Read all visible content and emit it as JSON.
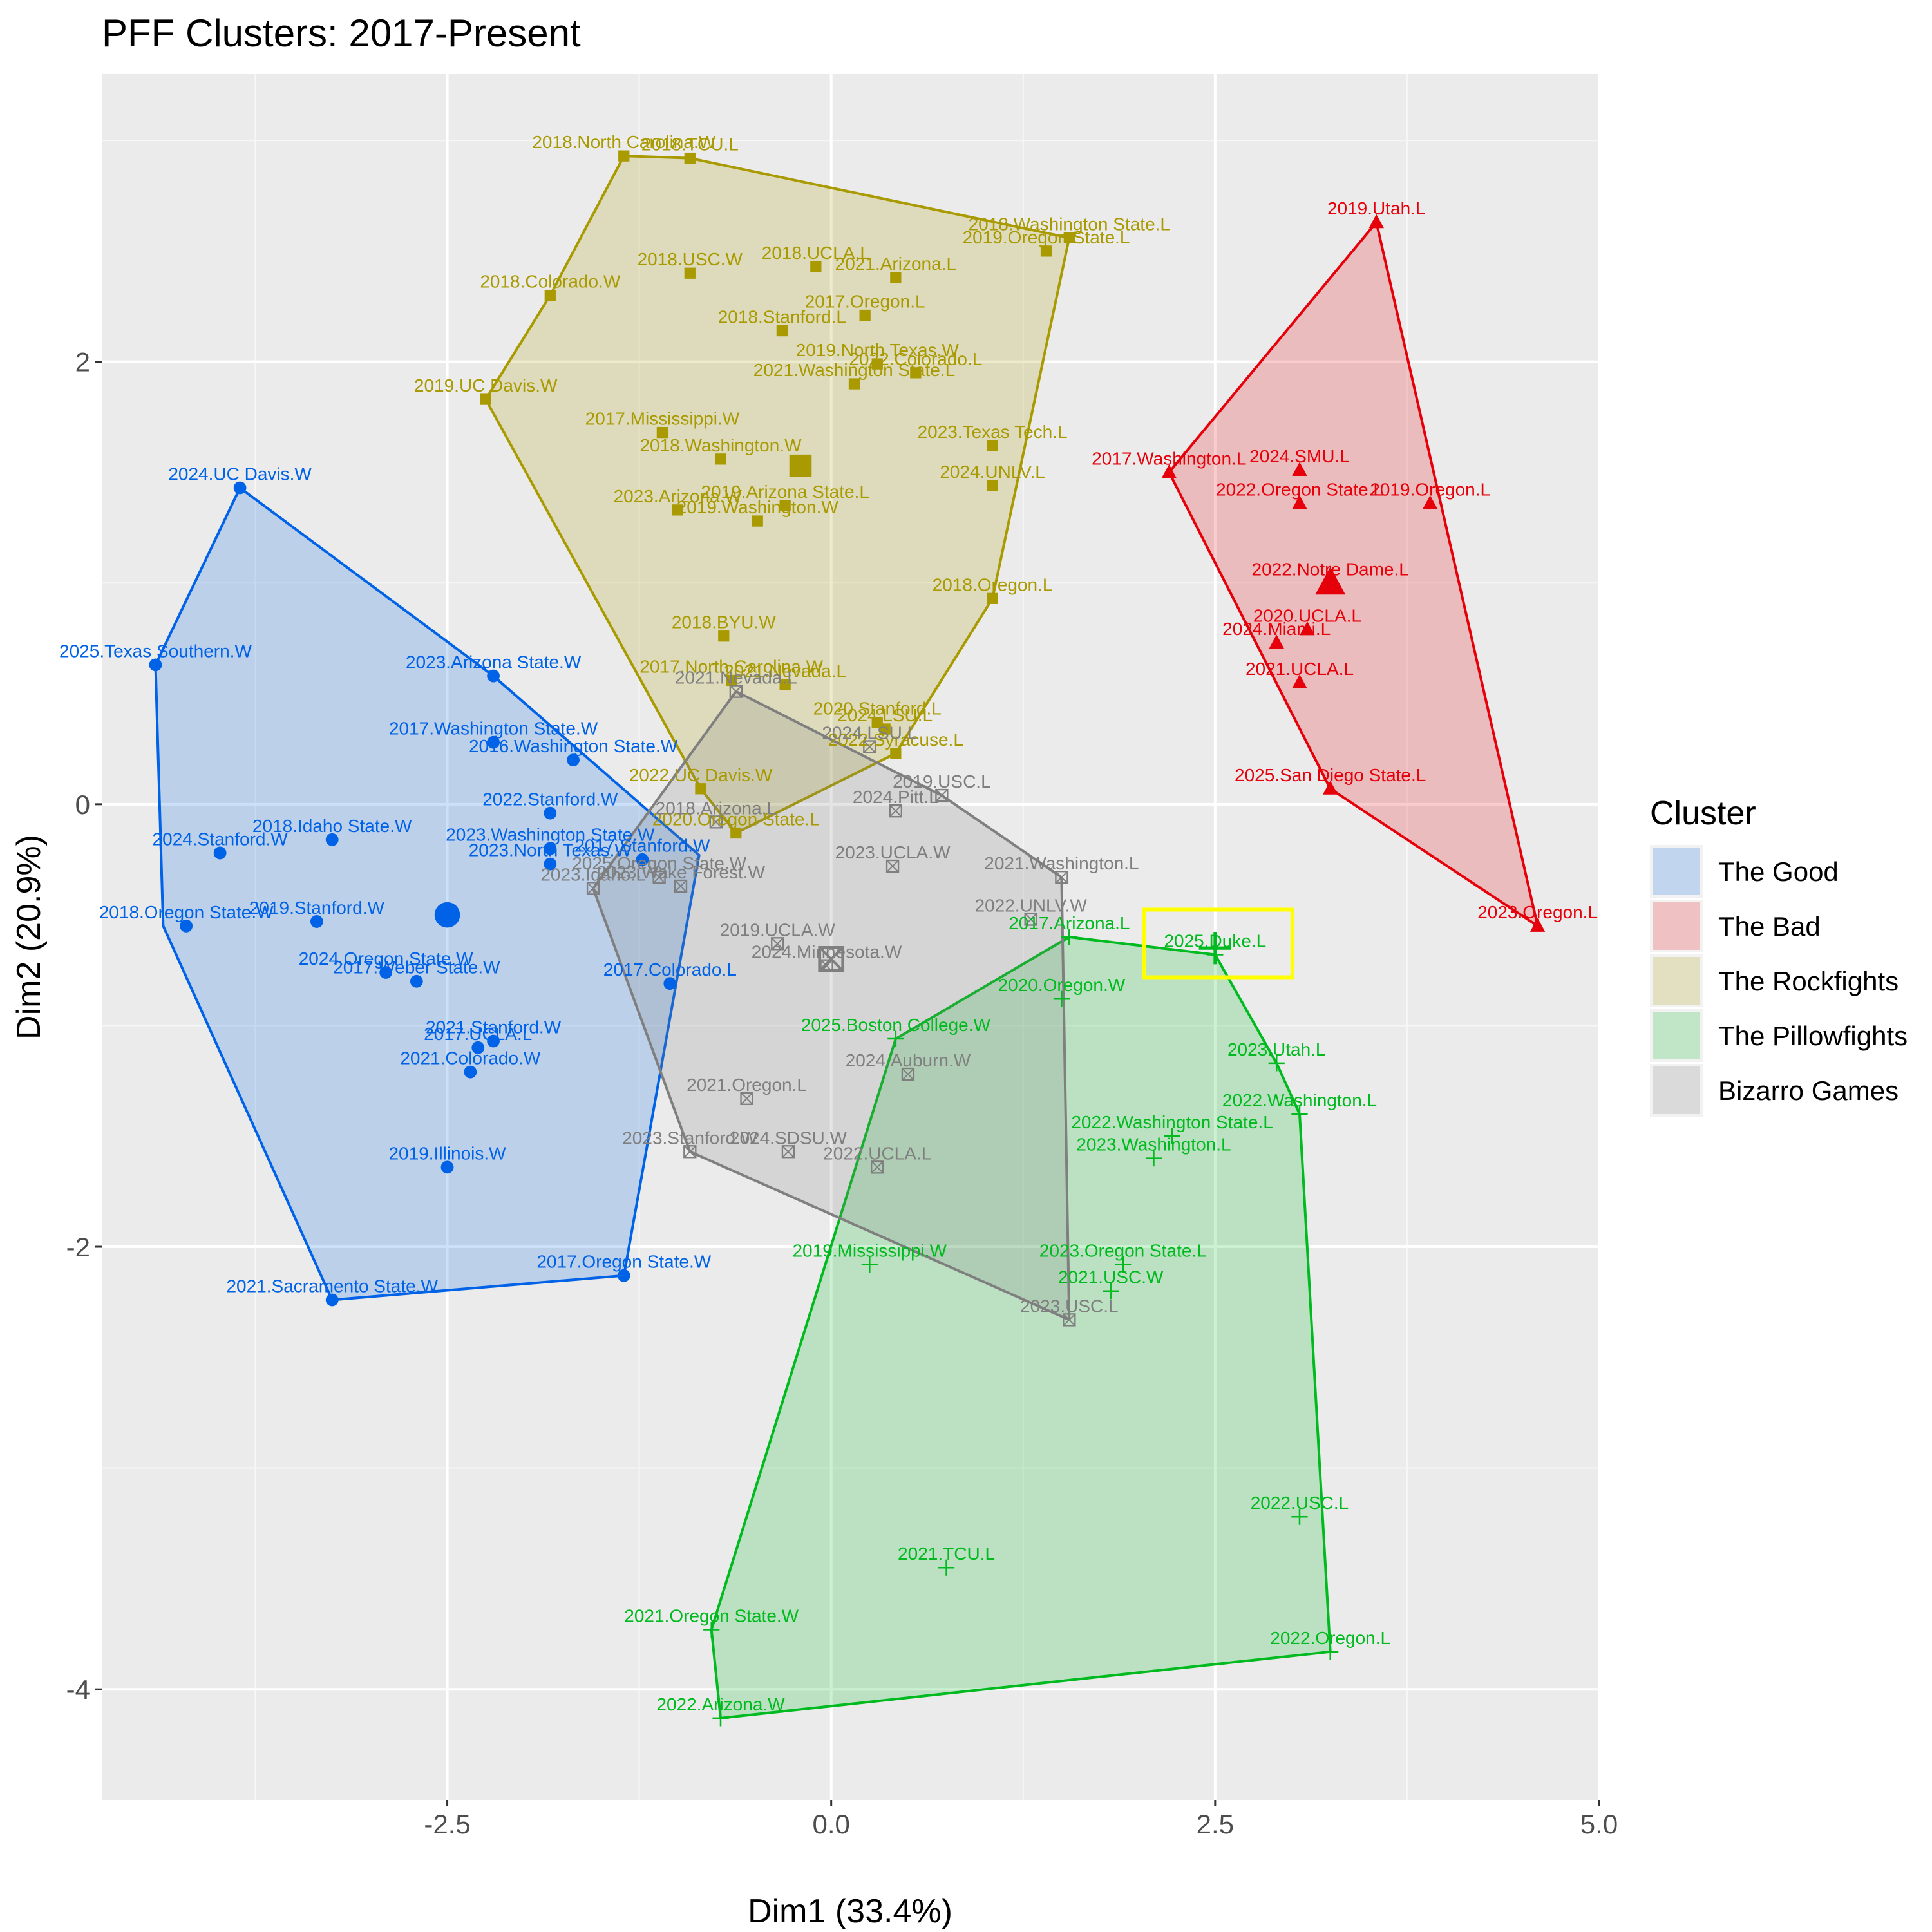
{
  "chart_data": {
    "type": "scatter",
    "title": "PFF Clusters: 2017-Present",
    "xlabel": "Dim1 (33.4%)",
    "ylabel": "Dim2 (20.9%)",
    "xlim": [
      -4.75,
      5.0
    ],
    "ylim": [
      -4.5,
      3.3
    ],
    "x_ticks": [
      -2.5,
      0.0,
      2.5,
      5.0
    ],
    "x_tick_labels": [
      "-2.5",
      "0.0",
      "2.5",
      "5.0"
    ],
    "y_ticks": [
      -4,
      -2,
      0,
      2
    ],
    "y_tick_labels": [
      "-4",
      "-2",
      "0",
      "2"
    ],
    "grid": true,
    "legend_title": "Cluster",
    "legend_position": "right",
    "highlight": {
      "label": "2025.Duke.L",
      "color": "#FFFF00"
    },
    "series": [
      {
        "name": "The Good",
        "color": "#0062E6",
        "shape": "circle",
        "centroid": [
          -2.5,
          -0.5
        ],
        "hull": [
          [
            -3.85,
            1.43
          ],
          [
            -2.2,
            0.58
          ],
          [
            -0.86,
            -0.23
          ],
          [
            -1.35,
            -2.13
          ],
          [
            -3.25,
            -2.24
          ],
          [
            -4.35,
            -0.55
          ],
          [
            -4.4,
            0.63
          ]
        ],
        "points": [
          {
            "label": "2024.UC Davis.W",
            "x": -3.85,
            "y": 1.43
          },
          {
            "label": "2025.Texas Southern.W",
            "x": -4.4,
            "y": 0.63
          },
          {
            "label": "2023.Arizona State.W",
            "x": -2.2,
            "y": 0.58
          },
          {
            "label": "2017.Washington State.W",
            "x": -2.2,
            "y": 0.28
          },
          {
            "label": "2016.Washington State.W",
            "x": -1.68,
            "y": 0.2
          },
          {
            "label": "2022.Stanford.W",
            "x": -1.83,
            "y": -0.04
          },
          {
            "label": "2018.Idaho State.W",
            "x": -3.25,
            "y": -0.16
          },
          {
            "label": "2024.Stanford.W",
            "x": -3.98,
            "y": -0.22
          },
          {
            "label": "2023.Washington State.W",
            "x": -1.83,
            "y": -0.2
          },
          {
            "label": "2017.Stanford.W",
            "x": -1.23,
            "y": -0.25
          },
          {
            "label": "2023.North Texas.W",
            "x": -1.83,
            "y": -0.27
          },
          {
            "label": "2018.Oregon State.W",
            "x": -4.2,
            "y": -0.55
          },
          {
            "label": "2019.Stanford.W",
            "x": -3.35,
            "y": -0.53
          },
          {
            "label": "2024.Oregon State.W",
            "x": -2.9,
            "y": -0.76
          },
          {
            "label": "2017.Weber State.W",
            "x": -2.7,
            "y": -0.8
          },
          {
            "label": "2017.Colorado.L",
            "x": -1.05,
            "y": -0.81
          },
          {
            "label": "2021.Stanford.W",
            "x": -2.2,
            "y": -1.07
          },
          {
            "label": "2017.UCLA.L",
            "x": -2.3,
            "y": -1.1
          },
          {
            "label": "2021.Colorado.W",
            "x": -2.35,
            "y": -1.21
          },
          {
            "label": "2019.Illinois.W",
            "x": -2.5,
            "y": -1.64
          },
          {
            "label": "2017.Oregon State.W",
            "x": -1.35,
            "y": -2.13
          },
          {
            "label": "2021.Sacramento State.W",
            "x": -3.25,
            "y": -2.24
          }
        ]
      },
      {
        "name": "The Bad",
        "color": "#E6000A",
        "shape": "triangle",
        "centroid": [
          3.25,
          1.0
        ],
        "hull": [
          [
            3.55,
            2.63
          ],
          [
            4.6,
            -0.55
          ],
          [
            3.25,
            0.07
          ],
          [
            2.2,
            1.5
          ]
        ],
        "points": [
          {
            "label": "2019.Utah.L",
            "x": 3.55,
            "y": 2.63
          },
          {
            "label": "2017.Washington.L",
            "x": 2.2,
            "y": 1.5
          },
          {
            "label": "2024.SMU.L",
            "x": 3.05,
            "y": 1.51
          },
          {
            "label": "2022.Oregon State.L",
            "x": 3.05,
            "y": 1.36
          },
          {
            "label": "2019.Oregon.L",
            "x": 3.9,
            "y": 1.36
          },
          {
            "label": "2022.Notre Dame.L",
            "x": 3.25,
            "y": 1.0
          },
          {
            "label": "2020.UCLA.L",
            "x": 3.1,
            "y": 0.79
          },
          {
            "label": "2024.Miami.L",
            "x": 2.9,
            "y": 0.73
          },
          {
            "label": "2021.UCLA.L",
            "x": 3.05,
            "y": 0.55
          },
          {
            "label": "2025.San Diego State.L",
            "x": 3.25,
            "y": 0.07
          },
          {
            "label": "2023.Oregon.L",
            "x": 4.6,
            "y": -0.55
          }
        ]
      },
      {
        "name": "The Rockfights",
        "color": "#A89A00",
        "shape": "square",
        "centroid": [
          -0.2,
          1.53
        ],
        "hull": [
          [
            -1.35,
            2.93
          ],
          [
            -0.92,
            2.92
          ],
          [
            1.55,
            2.56
          ],
          [
            1.05,
            0.93
          ],
          [
            0.42,
            0.23
          ],
          [
            -0.62,
            -0.13
          ],
          [
            -0.85,
            0.07
          ],
          [
            -2.25,
            1.83
          ],
          [
            -1.83,
            2.3
          ]
        ],
        "points": [
          {
            "label": "2018.North Carolina.W",
            "x": -1.35,
            "y": 2.93
          },
          {
            "label": "2018.TCU.L",
            "x": -0.92,
            "y": 2.92
          },
          {
            "label": "2019.Oregon State.L",
            "x": 1.4,
            "y": 2.5
          },
          {
            "label": "2018.Washington State.L",
            "x": 1.55,
            "y": 2.56
          },
          {
            "label": "2018.USC.W",
            "x": -0.92,
            "y": 2.4
          },
          {
            "label": "2018.UCLA.L",
            "x": -0.1,
            "y": 2.43
          },
          {
            "label": "2021.Arizona.L",
            "x": 0.42,
            "y": 2.38
          },
          {
            "label": "2018.Colorado.W",
            "x": -1.83,
            "y": 2.3
          },
          {
            "label": "2017.Oregon.L",
            "x": 0.22,
            "y": 2.21
          },
          {
            "label": "2018.Stanford.L",
            "x": -0.32,
            "y": 2.14
          },
          {
            "label": "2019.North Texas.W",
            "x": 0.3,
            "y": 1.99
          },
          {
            "label": "2022.Colorado.L",
            "x": 0.55,
            "y": 1.95
          },
          {
            "label": "2021.Washington State.L",
            "x": 0.15,
            "y": 1.9
          },
          {
            "label": "2019.UC Davis.W",
            "x": -2.25,
            "y": 1.83
          },
          {
            "label": "2017.Mississippi.W",
            "x": -1.1,
            "y": 1.68
          },
          {
            "label": "2023.Texas Tech.L",
            "x": 1.05,
            "y": 1.62
          },
          {
            "label": "2018.Washington.W",
            "x": -0.72,
            "y": 1.56
          },
          {
            "label": "2024.UNLV.L",
            "x": 1.05,
            "y": 1.44
          },
          {
            "label": "2019.Arizona State.L",
            "x": -0.3,
            "y": 1.35
          },
          {
            "label": "2023.Arizona.W",
            "x": -1.0,
            "y": 1.33
          },
          {
            "label": "2019.Washington.W",
            "x": -0.48,
            "y": 1.28
          },
          {
            "label": "2018.Oregon.L",
            "x": 1.05,
            "y": 0.93
          },
          {
            "label": "2018.BYU.W",
            "x": -0.7,
            "y": 0.76
          },
          {
            "label": "2017.North Carolina.W",
            "x": -0.65,
            "y": 0.56
          },
          {
            "label": "2021.Nevada.L",
            "x": -0.3,
            "y": 0.54
          },
          {
            "label": "2020.Stanford.L",
            "x": 0.3,
            "y": 0.37
          },
          {
            "label": "2024.LSU.L",
            "x": 0.35,
            "y": 0.34
          },
          {
            "label": "2022.Syracuse.L",
            "x": 0.42,
            "y": 0.23
          },
          {
            "label": "2022.UC Davis.W",
            "x": -0.85,
            "y": 0.07
          },
          {
            "label": "2020.Oregon State.L",
            "x": -0.62,
            "y": -0.13
          }
        ]
      },
      {
        "name": "The Pillowfights",
        "color": "#00BA1F",
        "shape": "plus",
        "centroid": [
          2.5,
          -0.65
        ],
        "hull": [
          [
            1.55,
            -0.6
          ],
          [
            2.5,
            -0.68
          ],
          [
            2.9,
            -1.17
          ],
          [
            3.05,
            -1.4
          ],
          [
            3.25,
            -3.83
          ],
          [
            -0.72,
            -4.13
          ],
          [
            -0.78,
            -3.73
          ],
          [
            0.42,
            -1.06
          ]
        ],
        "points": [
          {
            "label": "2017.Arizona.L",
            "x": 1.55,
            "y": -0.6
          },
          {
            "label": "2025.Duke.L",
            "x": 2.5,
            "y": -0.68
          },
          {
            "label": "2020.Oregon.W",
            "x": 1.5,
            "y": -0.88
          },
          {
            "label": "2025.Boston College.W",
            "x": 0.42,
            "y": -1.06
          },
          {
            "label": "2023.Utah.L",
            "x": 2.9,
            "y": -1.17
          },
          {
            "label": "2022.Washington.L",
            "x": 3.05,
            "y": -1.4
          },
          {
            "label": "2022.Washington State.L",
            "x": 2.22,
            "y": -1.5
          },
          {
            "label": "2023.Washington.L",
            "x": 2.1,
            "y": -1.6
          },
          {
            "label": "2023.Oregon State.L",
            "x": 1.9,
            "y": -2.08
          },
          {
            "label": "2019.Mississippi.W",
            "x": 0.25,
            "y": -2.08
          },
          {
            "label": "2021.USC.W",
            "x": 1.82,
            "y": -2.2
          },
          {
            "label": "2022.USC.L",
            "x": 3.05,
            "y": -3.22
          },
          {
            "label": "2021.TCU.L",
            "x": 0.75,
            "y": -3.45
          },
          {
            "label": "2021.Oregon State.W",
            "x": -0.78,
            "y": -3.73
          },
          {
            "label": "2022.Oregon.L",
            "x": 3.25,
            "y": -3.83
          },
          {
            "label": "2022.Arizona.W",
            "x": -0.72,
            "y": -4.13
          }
        ]
      },
      {
        "name": "Bizarro Games",
        "color": "#7F7F7F",
        "shape": "square-cross",
        "centroid": [
          0.0,
          -0.7
        ],
        "hull": [
          [
            -0.62,
            0.51
          ],
          [
            0.72,
            0.04
          ],
          [
            1.5,
            -0.33
          ],
          [
            1.55,
            -2.33
          ],
          [
            -0.92,
            -1.57
          ],
          [
            -1.55,
            -0.38
          ]
        ],
        "points": [
          {
            "label": "2021.Nevada.L",
            "x": -0.62,
            "y": 0.51
          },
          {
            "label": "2024.LSU.L",
            "x": 0.25,
            "y": 0.26
          },
          {
            "label": "2019.USC.L",
            "x": 0.72,
            "y": 0.04
          },
          {
            "label": "2024.Pitt.L",
            "x": 0.42,
            "y": -0.03
          },
          {
            "label": "2018.Arizona.L",
            "x": -0.75,
            "y": -0.08
          },
          {
            "label": "2023.UCLA.W",
            "x": 0.4,
            "y": -0.28
          },
          {
            "label": "2021.Washington.L",
            "x": 1.5,
            "y": -0.33
          },
          {
            "label": "2025.Oregon State.W",
            "x": -1.12,
            "y": -0.33
          },
          {
            "label": "2023.Wake Forest.W",
            "x": -0.98,
            "y": -0.37
          },
          {
            "label": "2023.Idaho.L",
            "x": -1.55,
            "y": -0.38
          },
          {
            "label": "2022.UNLV.W",
            "x": 1.3,
            "y": -0.52
          },
          {
            "label": "2019.UCLA.W",
            "x": -0.35,
            "y": -0.63
          },
          {
            "label": "2024.Minnesota.W",
            "x": -0.03,
            "y": -0.73
          },
          {
            "label": "2024.Auburn.W",
            "x": 0.5,
            "y": -1.22
          },
          {
            "label": "2021.Oregon.L",
            "x": -0.55,
            "y": -1.33
          },
          {
            "label": "2023.Stanford.W",
            "x": -0.92,
            "y": -1.57
          },
          {
            "label": "2024.SDSU.W",
            "x": -0.28,
            "y": -1.57
          },
          {
            "label": "2022.UCLA.L",
            "x": 0.3,
            "y": -1.64
          },
          {
            "label": "2023.USC.L",
            "x": 1.55,
            "y": -2.33
          }
        ]
      }
    ]
  }
}
